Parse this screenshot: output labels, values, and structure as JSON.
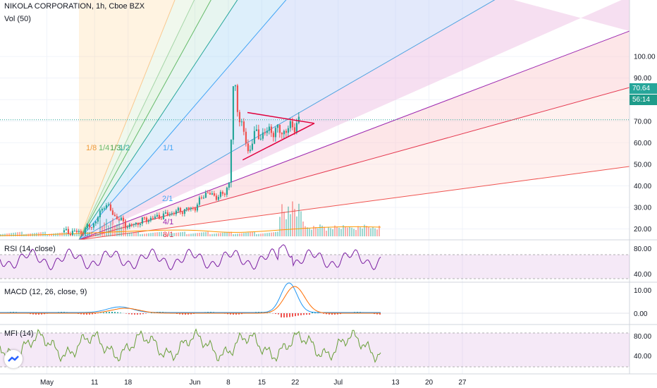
{
  "header": {
    "title": "NIKOLA CORPORATION, 1h, Cboe BZX",
    "volume_label": "Vol (50)"
  },
  "price_badge": {
    "last": "70.64",
    "countdown": "56:14"
  },
  "colors": {
    "up": "#26a69a",
    "down": "#ef5350",
    "triangle": "#e0003c",
    "rsi": "#7b1fa2",
    "macd": "#2196f3",
    "signal": "#ff6d00",
    "mfi": "#689f38",
    "grid": "#f0f3fa"
  },
  "gann_fan_labels": [
    "1/8",
    "1/4",
    "1/3",
    "1/2",
    "1/1",
    "2/1",
    "4/1",
    "8/1"
  ],
  "indicators": {
    "rsi": {
      "label": "RSI (14, close)",
      "ticks": [
        "80.00",
        "40.00"
      ]
    },
    "macd": {
      "label": "MACD (12, 26, close, 9)",
      "ticks": [
        "10.00",
        "0.00"
      ]
    },
    "mfi": {
      "label": "MFI (14)",
      "ticks": [
        "80.00",
        "40.00"
      ]
    }
  },
  "chart_data": {
    "type": "candlestick",
    "title": "NIKOLA CORPORATION, 1h, Cboe BZX",
    "y_ticks": [
      "100.00",
      "90.00",
      "80.00",
      "70.00",
      "60.00",
      "50.00",
      "40.00",
      "30.00",
      "20.00"
    ],
    "ylim": [
      17,
      104
    ],
    "x_ticks": [
      "May",
      "11",
      "18",
      "Jun",
      "8",
      "15",
      "22",
      "Jul",
      "13",
      "20",
      "27"
    ],
    "last_price": 70.64,
    "price_path": [
      [
        "May 4",
        18.5
      ],
      [
        "May 8",
        18.6
      ],
      [
        "May 11",
        23
      ],
      [
        "May 13",
        32
      ],
      [
        "May 15",
        26
      ],
      [
        "May 18",
        21
      ],
      [
        "May 21",
        24
      ],
      [
        "May 25",
        26
      ],
      [
        "May 28",
        28
      ],
      [
        "Jun 1",
        30
      ],
      [
        "Jun 3",
        37
      ],
      [
        "Jun 5",
        35
      ],
      [
        "Jun 7",
        36
      ],
      [
        "Jun 8",
        42
      ],
      [
        "Jun 9",
        90
      ],
      [
        "Jun 10",
        73
      ],
      [
        "Jun 11",
        65
      ],
      [
        "Jun 12",
        55
      ],
      [
        "Jun 13",
        63
      ],
      [
        "Jun 15",
        64
      ],
      [
        "Jun 17",
        66
      ],
      [
        "Jun 19",
        65
      ],
      [
        "Jun 21",
        67
      ],
      [
        "Jun 23",
        70.64
      ]
    ],
    "symmetrical_triangle": {
      "upper": [
        [
          "Jun 12",
          74
        ],
        [
          "Jun 26",
          69
        ]
      ],
      "lower": [
        [
          "Jun 11",
          52
        ],
        [
          "Jun 26",
          69
        ]
      ]
    }
  }
}
